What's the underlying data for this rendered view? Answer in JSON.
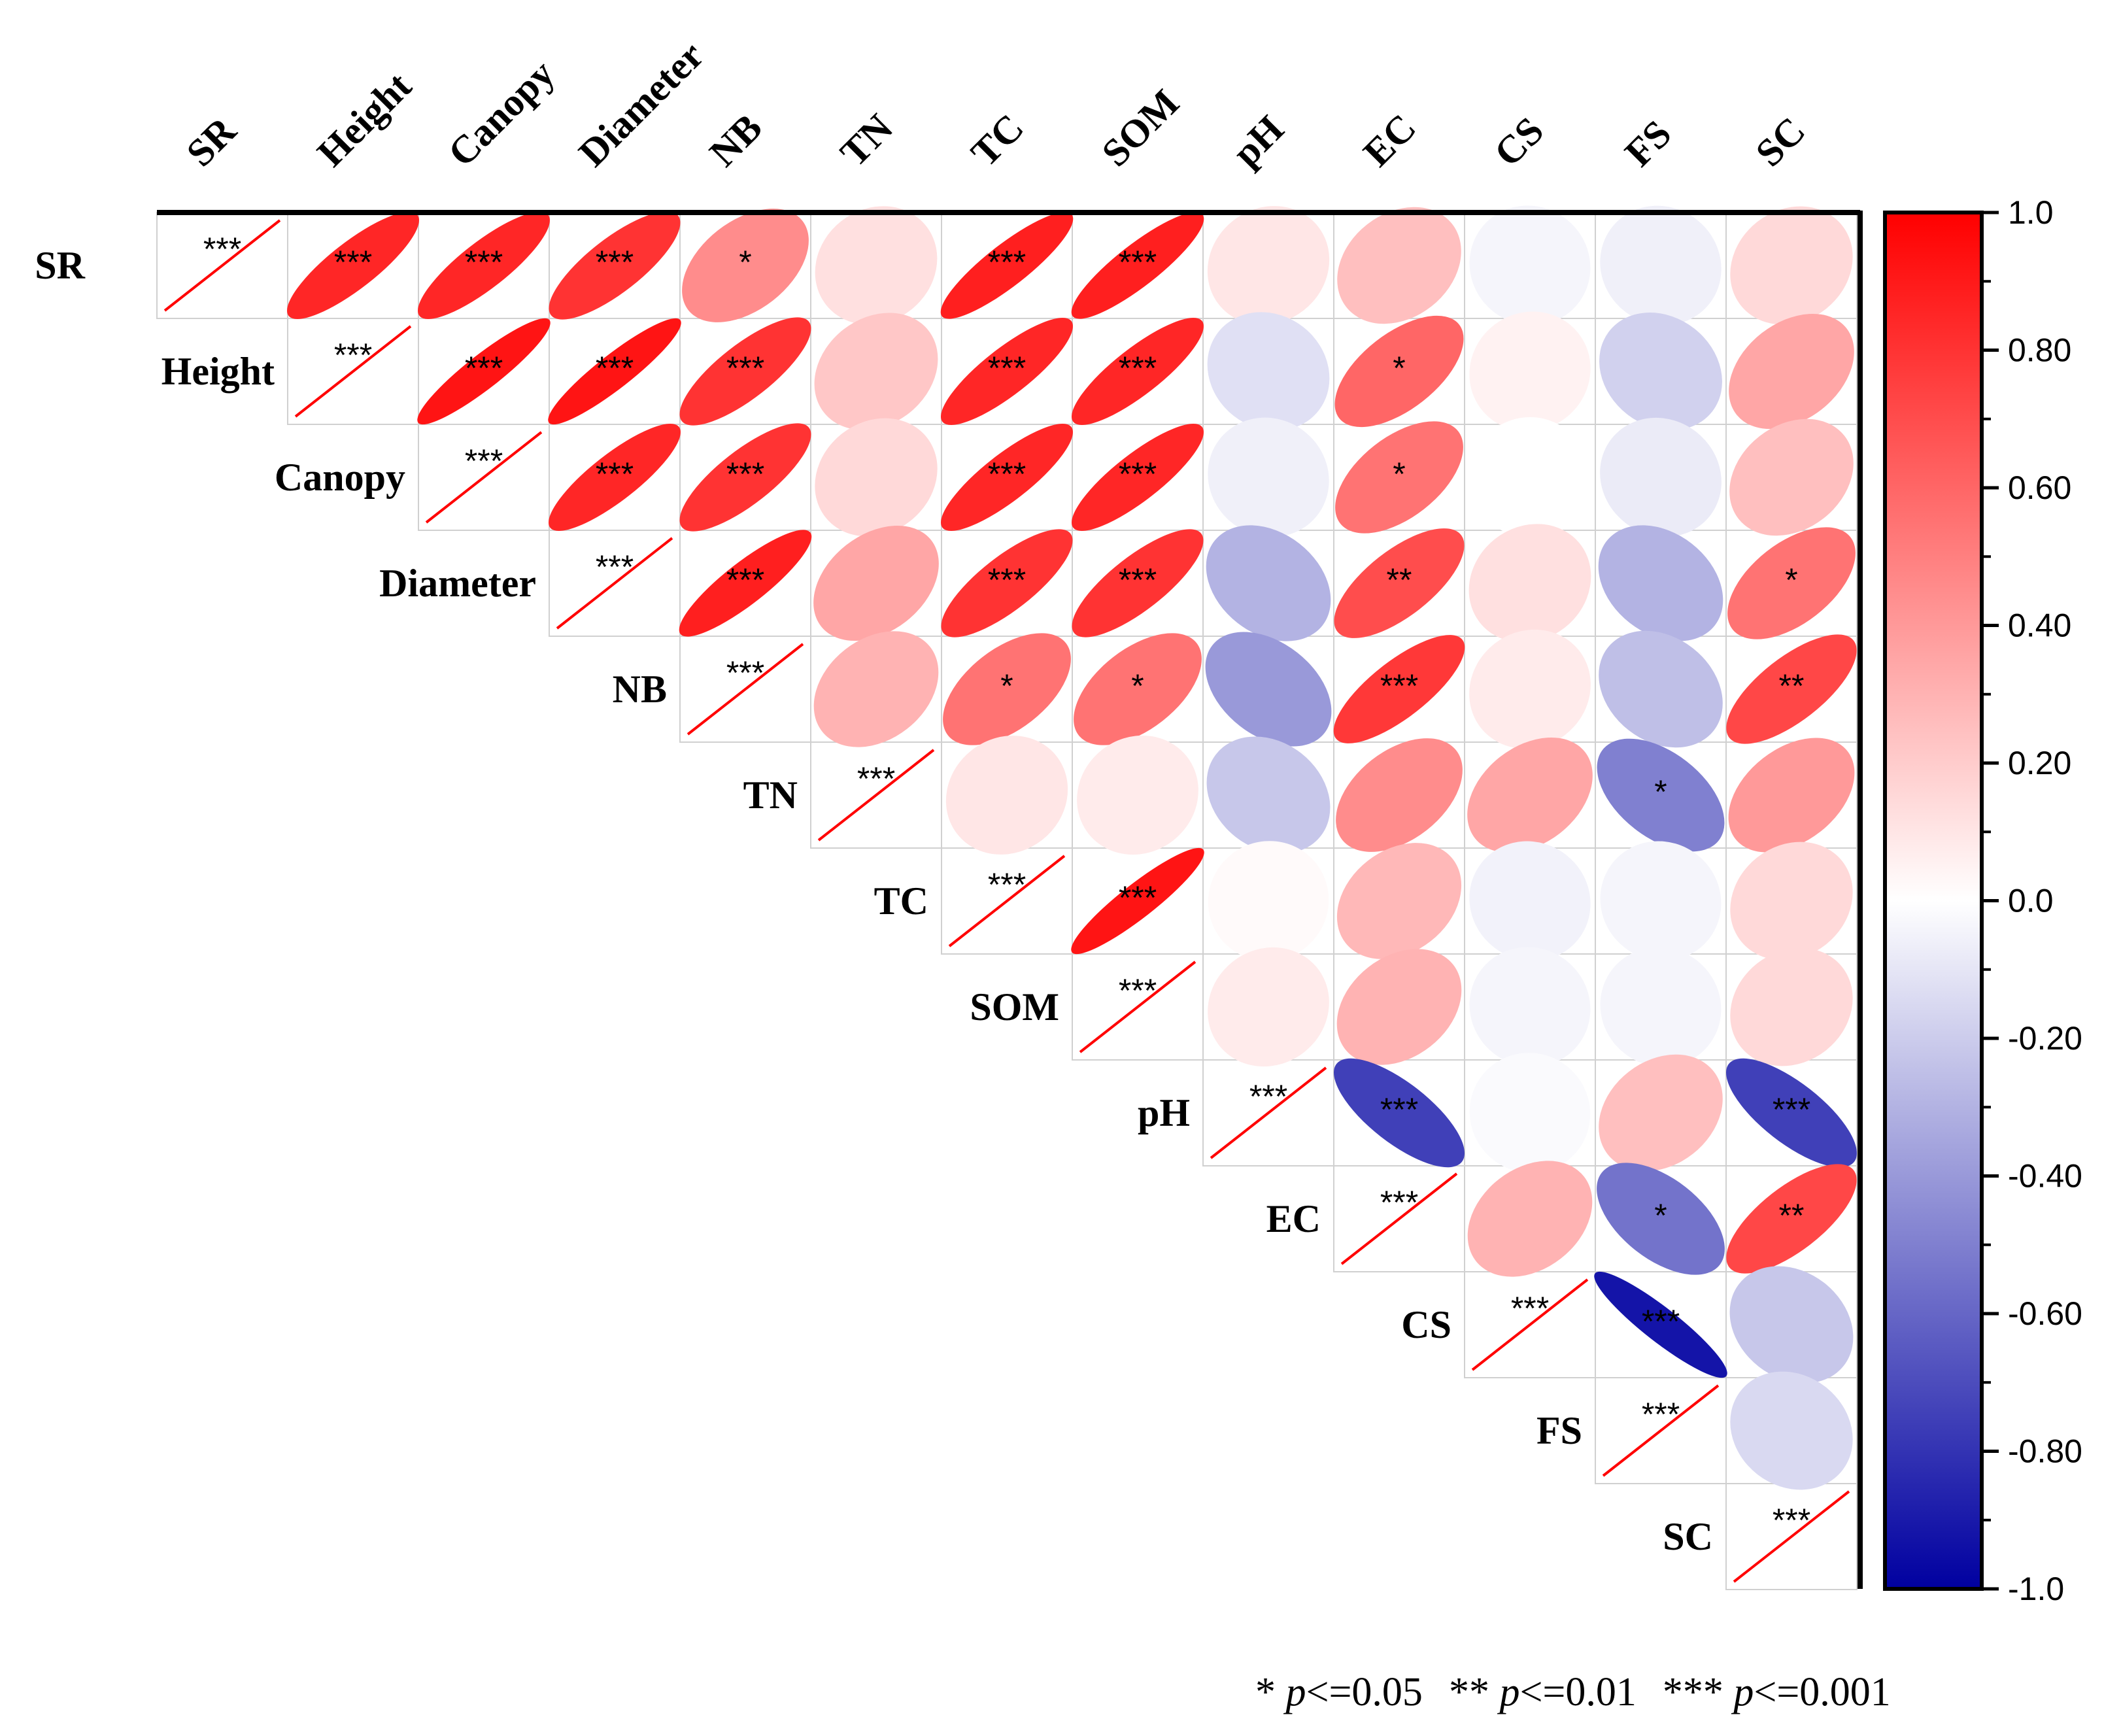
{
  "chart_data": {
    "type": "heatmap",
    "style": "correlation-ellipse-upper-triangle",
    "variables": [
      "SR",
      "Height",
      "Canopy",
      "Diameter",
      "NB",
      "TN",
      "TC",
      "SOM",
      "pH",
      "EC",
      "CS",
      "FS",
      "SC"
    ],
    "correlation_matrix": [
      [
        1.0,
        0.85,
        0.85,
        0.8,
        0.45,
        0.12,
        0.88,
        0.88,
        0.1,
        0.25,
        -0.04,
        -0.06,
        0.15
      ],
      [
        0.85,
        1.0,
        0.92,
        0.92,
        0.8,
        0.22,
        0.85,
        0.85,
        -0.12,
        0.6,
        0.05,
        -0.18,
        0.35
      ],
      [
        0.85,
        0.92,
        1.0,
        0.85,
        0.8,
        0.15,
        0.85,
        0.85,
        -0.06,
        0.55,
        0.0,
        -0.08,
        0.25
      ],
      [
        0.8,
        0.92,
        0.85,
        1.0,
        0.88,
        0.35,
        0.8,
        0.8,
        -0.3,
        0.7,
        0.12,
        -0.3,
        0.55
      ],
      [
        0.45,
        0.8,
        0.8,
        0.88,
        1.0,
        0.3,
        0.55,
        0.55,
        -0.4,
        0.78,
        0.08,
        -0.25,
        0.72
      ],
      [
        0.12,
        0.22,
        0.15,
        0.35,
        0.3,
        1.0,
        0.1,
        0.08,
        -0.22,
        0.45,
        0.35,
        -0.5,
        0.4
      ],
      [
        0.88,
        0.85,
        0.85,
        0.8,
        0.55,
        0.1,
        1.0,
        0.92,
        0.02,
        0.28,
        -0.05,
        -0.04,
        0.15
      ],
      [
        0.88,
        0.85,
        0.85,
        0.8,
        0.55,
        0.08,
        0.92,
        1.0,
        0.08,
        0.3,
        -0.04,
        -0.04,
        0.15
      ],
      [
        0.1,
        -0.12,
        -0.06,
        -0.3,
        -0.4,
        -0.22,
        0.02,
        0.08,
        1.0,
        -0.75,
        -0.02,
        0.25,
        -0.75
      ],
      [
        0.25,
        0.6,
        0.55,
        0.7,
        0.78,
        0.45,
        0.28,
        0.3,
        -0.75,
        1.0,
        0.3,
        -0.55,
        0.72
      ],
      [
        -0.04,
        0.05,
        0.0,
        0.12,
        0.08,
        0.35,
        -0.05,
        -0.04,
        -0.02,
        0.3,
        1.0,
        -0.92,
        -0.22
      ],
      [
        -0.06,
        -0.18,
        -0.08,
        -0.3,
        -0.25,
        -0.5,
        -0.04,
        -0.04,
        0.25,
        -0.55,
        -0.92,
        1.0,
        -0.15
      ],
      [
        0.15,
        0.35,
        0.25,
        0.55,
        0.72,
        0.4,
        0.15,
        0.15,
        -0.75,
        0.72,
        -0.22,
        -0.15,
        1.0
      ]
    ],
    "significance": [
      [
        "***",
        "***",
        "***",
        "***",
        "*",
        "",
        "***",
        "***",
        "",
        "",
        "",
        "",
        ""
      ],
      [
        "***",
        "***",
        "***",
        "***",
        "***",
        "",
        "***",
        "***",
        "",
        "*",
        "",
        "",
        ""
      ],
      [
        "***",
        "***",
        "***",
        "***",
        "***",
        "",
        "***",
        "***",
        "",
        "*",
        "",
        "",
        ""
      ],
      [
        "***",
        "***",
        "***",
        "***",
        "***",
        "",
        "***",
        "***",
        "",
        "**",
        "",
        "",
        "*"
      ],
      [
        "*",
        "***",
        "***",
        "***",
        "***",
        "",
        "*",
        "*",
        "",
        "***",
        "",
        "",
        "**"
      ],
      [
        "",
        "",
        "",
        "",
        "",
        "***",
        "",
        "",
        "",
        "",
        "",
        "*",
        ""
      ],
      [
        "***",
        "***",
        "***",
        "***",
        "*",
        "",
        "***",
        "***",
        "",
        "",
        "",
        "",
        ""
      ],
      [
        "***",
        "***",
        "***",
        "***",
        "*",
        "",
        "***",
        "***",
        "",
        "",
        "",
        "",
        ""
      ],
      [
        "",
        "",
        "",
        "",
        "",
        "",
        "",
        "",
        "***",
        "***",
        "",
        "",
        "***"
      ],
      [
        "",
        "*",
        "*",
        "**",
        "***",
        "",
        "",
        "",
        "***",
        "***",
        "",
        "*",
        "**"
      ],
      [
        "",
        "",
        "",
        "",
        "",
        "",
        "",
        "",
        "",
        "",
        "***",
        "***",
        ""
      ],
      [
        "",
        "",
        "",
        "",
        "",
        "*",
        "",
        "",
        "",
        "*",
        "***",
        "***",
        ""
      ],
      [
        "",
        "",
        "",
        "*",
        "**",
        "",
        "",
        "",
        "***",
        "**",
        "",
        "",
        "***"
      ]
    ],
    "colorbar": {
      "range": [
        -1.0,
        1.0
      ],
      "ticks": [
        "1.0",
        "0.80",
        "0.60",
        "0.40",
        "0.20",
        "0.0",
        "-0.20",
        "-0.40",
        "-0.60",
        "-0.80",
        "-1.0"
      ],
      "low_color": "#0000a0",
      "mid_color": "#ffffff",
      "high_color": "#ff0000"
    },
    "diagonal_line_color": "#ff0000"
  },
  "significance_legend": {
    "star1": "* ",
    "p1": "p",
    "t1": "<=0.05",
    "star2": "** ",
    "p2": "p",
    "t2": "<=0.01",
    "star3": "*** ",
    "p3": "p",
    "t3": "<=0.001"
  }
}
